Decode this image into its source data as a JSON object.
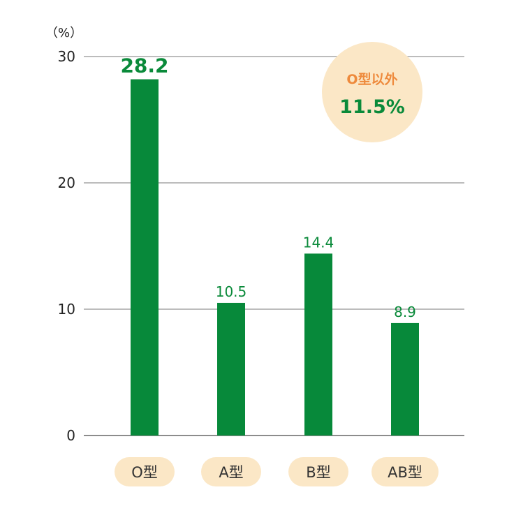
{
  "chart_data": {
    "type": "bar",
    "unit_label": "（%）",
    "categories": [
      "O型",
      "A型",
      "B型",
      "AB型"
    ],
    "values": [
      28.2,
      10.5,
      14.4,
      8.9
    ],
    "value_labels": [
      "28.2",
      "10.5",
      "14.4",
      "8.9"
    ],
    "highlight_index": 0,
    "yticks": [
      0,
      10,
      20,
      30
    ],
    "ylim": [
      0,
      30
    ],
    "grid": true,
    "bar_color": "#07893a",
    "callout": {
      "label": "O型以外",
      "value": "11.5%"
    },
    "callout_label_color": "#ee8a3c",
    "pill_color": "#fbe7c6"
  }
}
